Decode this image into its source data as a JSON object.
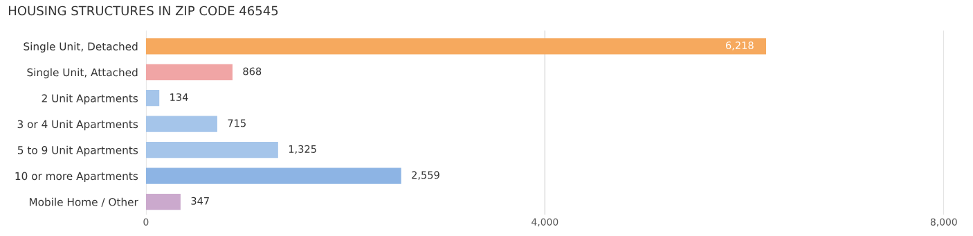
{
  "chart_data": {
    "type": "bar",
    "orientation": "horizontal",
    "title": "HOUSING STRUCTURES IN ZIP CODE 46545",
    "categories": [
      "Single Unit, Detached",
      "Single Unit, Attached",
      "2 Unit Apartments",
      "3 or 4 Unit Apartments",
      "5 to 9 Unit Apartments",
      "10 or more Apartments",
      "Mobile Home / Other"
    ],
    "values": [
      6218,
      868,
      134,
      715,
      1325,
      2559,
      347
    ],
    "colors": [
      "#f6a95e",
      "#f0a5a5",
      "#a5c5ea",
      "#a5c5ea",
      "#a5c5ea",
      "#8db4e4",
      "#cba9cd"
    ],
    "value_labels": [
      "6,218",
      "868",
      "134",
      "715",
      "1,325",
      "2,559",
      "347"
    ],
    "xlim": [
      0,
      8000
    ],
    "xticks": [
      {
        "value": 0,
        "label": "0"
      },
      {
        "value": 4000,
        "label": "4,000"
      },
      {
        "value": 8000,
        "label": "8,000"
      }
    ],
    "grid": "x",
    "legend": false
  }
}
